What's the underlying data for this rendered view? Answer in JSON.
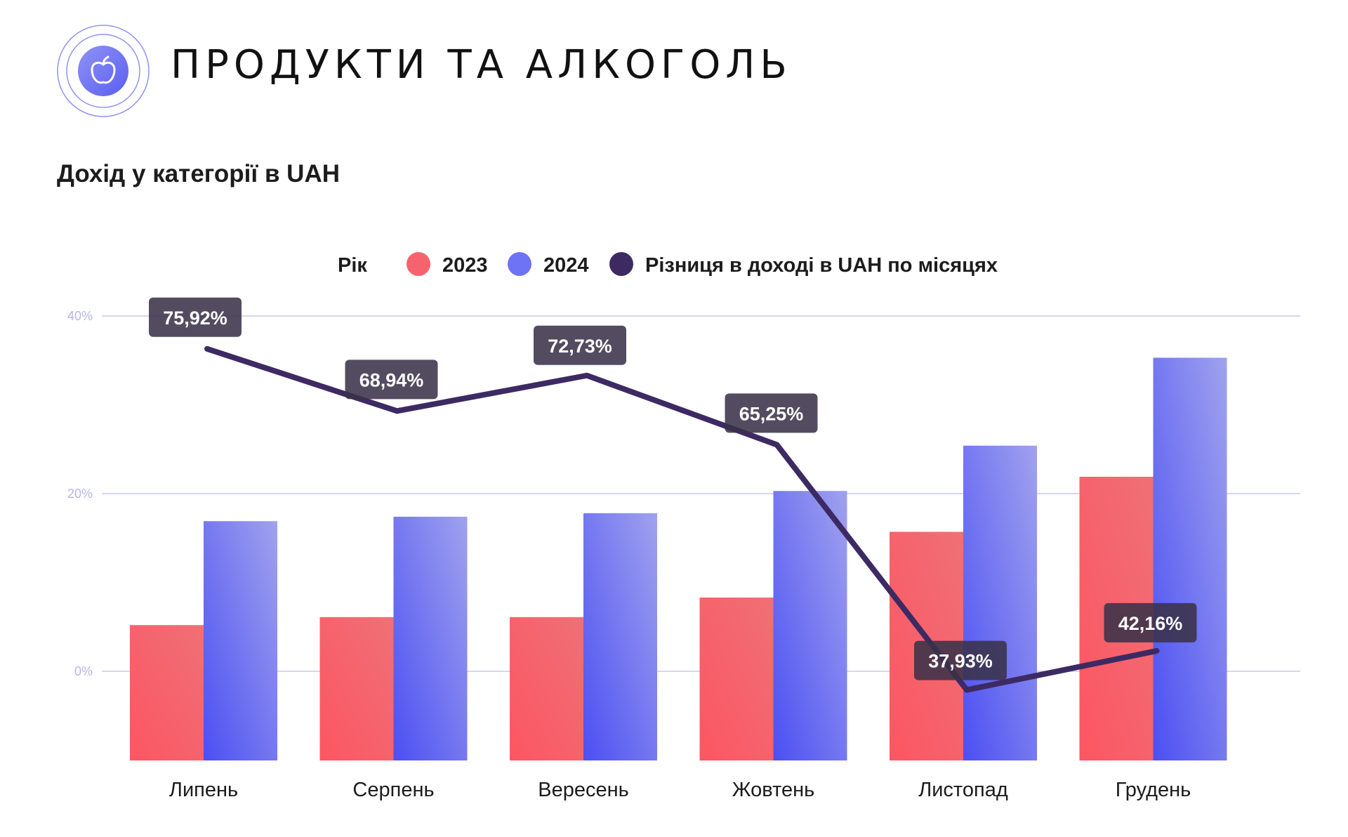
{
  "header": {
    "title": "ПРОДУКТИ ТА АЛКОГОЛЬ",
    "logo_icon": "apple-icon"
  },
  "subtitle": "Дохід у категорії в UAH",
  "colors": {
    "series_2023": "#f6636f",
    "series_2024": "#6e73f5",
    "difference_line": "#3d2a63",
    "label_box": "#3a3148",
    "grid": "#c9c8ee",
    "logo_accent": "#6f74f1"
  },
  "chart_data": {
    "type": "bar",
    "categories": [
      "Липень",
      "Серпень",
      "Вересень",
      "Жовтень",
      "Листопад",
      "Грудень"
    ],
    "legend_title": "Рік",
    "legend_position": "top-center",
    "yaxis": {
      "ticks": [
        "40%",
        "20%",
        "0%"
      ],
      "tick_values": [
        40,
        20,
        0
      ],
      "ylim": [
        -10,
        40
      ]
    },
    "grid": true,
    "series": [
      {
        "name": "2023",
        "type": "bar",
        "values": [
          5.2,
          6.1,
          6.1,
          8.3,
          15.7,
          21.9
        ]
      },
      {
        "name": "2024",
        "type": "bar",
        "values": [
          16.9,
          17.4,
          17.8,
          20.3,
          25.4,
          35.3
        ]
      },
      {
        "name": "Різниця в доході в UAH по місяцях",
        "type": "line",
        "values": [
          36.3,
          29.3,
          33.3,
          25.5,
          -2.1,
          2.3
        ],
        "labels": [
          "75,92%",
          "68,94%",
          "72,73%",
          "65,25%",
          "37,93%",
          "42,16%"
        ]
      }
    ]
  }
}
